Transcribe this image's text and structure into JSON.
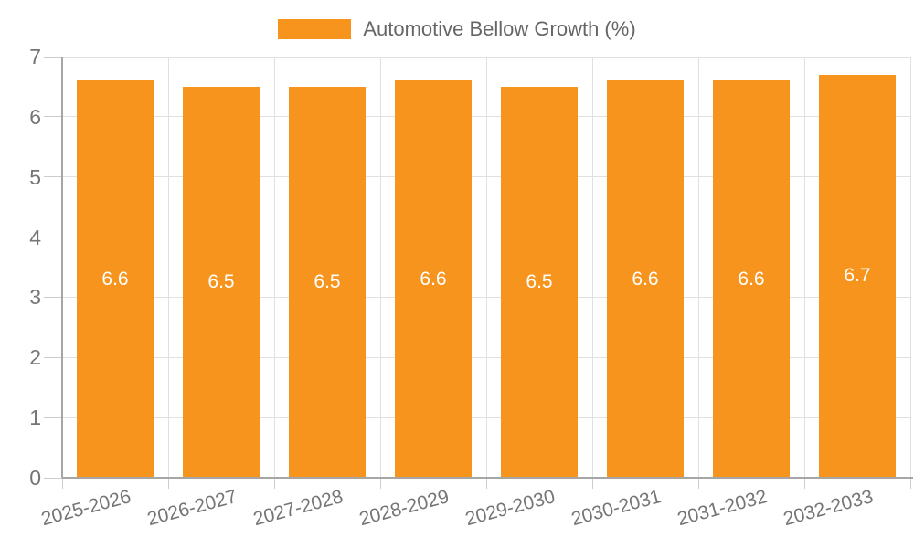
{
  "legend": {
    "label": "Automotive Bellow Growth (%)"
  },
  "colors": {
    "bar": "#F7941E",
    "value_label": "#FFFFFF",
    "grid": "#E0E0E0",
    "axis": "#A6A6A6",
    "tick": "#CCCCCC",
    "tick_text": "#757575",
    "legend_text": "#666666",
    "background": "#FFFFFF"
  },
  "chart_data": {
    "type": "bar",
    "title": "",
    "xlabel": "",
    "ylabel": "",
    "categories": [
      "2025-2026",
      "2026-2027",
      "2027-2028",
      "2028-2029",
      "2029-2030",
      "2030-2031",
      "2031-2032",
      "2032-2033"
    ],
    "series": [
      {
        "name": "Automotive Bellow Growth (%)",
        "values": [
          6.6,
          6.5,
          6.5,
          6.6,
          6.5,
          6.6,
          6.6,
          6.7
        ]
      }
    ],
    "value_labels": [
      "6.6",
      "6.5",
      "6.5",
      "6.6",
      "6.5",
      "6.6",
      "6.6",
      "6.7"
    ],
    "ylim": [
      0,
      7
    ],
    "yticks": [
      0,
      1,
      2,
      3,
      4,
      5,
      6,
      7
    ],
    "grid": true,
    "legend_position": "top-center",
    "value_label_position": "inside-middle",
    "x_tick_rotation_deg": -15
  }
}
